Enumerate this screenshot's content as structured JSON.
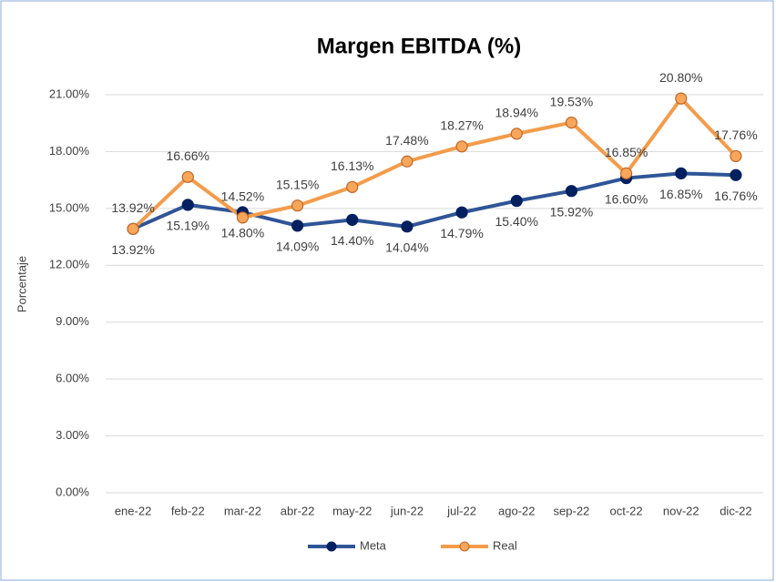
{
  "chart_data": {
    "type": "line",
    "title": "Margen EBITDA (%)",
    "ylabel": "Porcentaje",
    "categories": [
      "ene-22",
      "feb-22",
      "mar-22",
      "abr-22",
      "may-22",
      "jun-22",
      "jul-22",
      "ago-22",
      "sep-22",
      "oct-22",
      "nov-22",
      "dic-22"
    ],
    "series": [
      {
        "name": "Meta",
        "color": "#2f5597",
        "marker_color": "#002060",
        "values": [
          13.92,
          15.19,
          14.8,
          14.09,
          14.4,
          14.04,
          14.79,
          15.4,
          15.92,
          16.6,
          16.85,
          16.76
        ],
        "value_labels": [
          "13.92%",
          "15.19%",
          "14.80%",
          "14.09%",
          "14.40%",
          "14.04%",
          "14.79%",
          "15.40%",
          "15.92%",
          "16.60%",
          "16.85%",
          "16.76%"
        ]
      },
      {
        "name": "Real",
        "color": "#f39c4a",
        "marker_color": "#f8a75a",
        "values": [
          13.92,
          16.66,
          14.52,
          15.15,
          16.13,
          17.48,
          18.27,
          18.94,
          19.53,
          16.85,
          20.8,
          17.76
        ],
        "value_labels": [
          "13.92%",
          "16.66%",
          "14.52%",
          "15.15%",
          "16.13%",
          "17.48%",
          "18.27%",
          "18.94%",
          "19.53%",
          "16.85%",
          "20.80%",
          "17.76%"
        ]
      }
    ],
    "ylim": [
      0,
      21
    ],
    "yticks": [
      {
        "value": 0,
        "label": "0.00%"
      },
      {
        "value": 3,
        "label": "3.00%"
      },
      {
        "value": 6,
        "label": "6.00%"
      },
      {
        "value": 9,
        "label": "9.00%"
      },
      {
        "value": 12,
        "label": "12.00%"
      },
      {
        "value": 15,
        "label": "15.00%"
      },
      {
        "value": 18,
        "label": "18.00%"
      },
      {
        "value": 21,
        "label": "21.00%"
      }
    ],
    "grid": true,
    "legend": "bottom"
  }
}
